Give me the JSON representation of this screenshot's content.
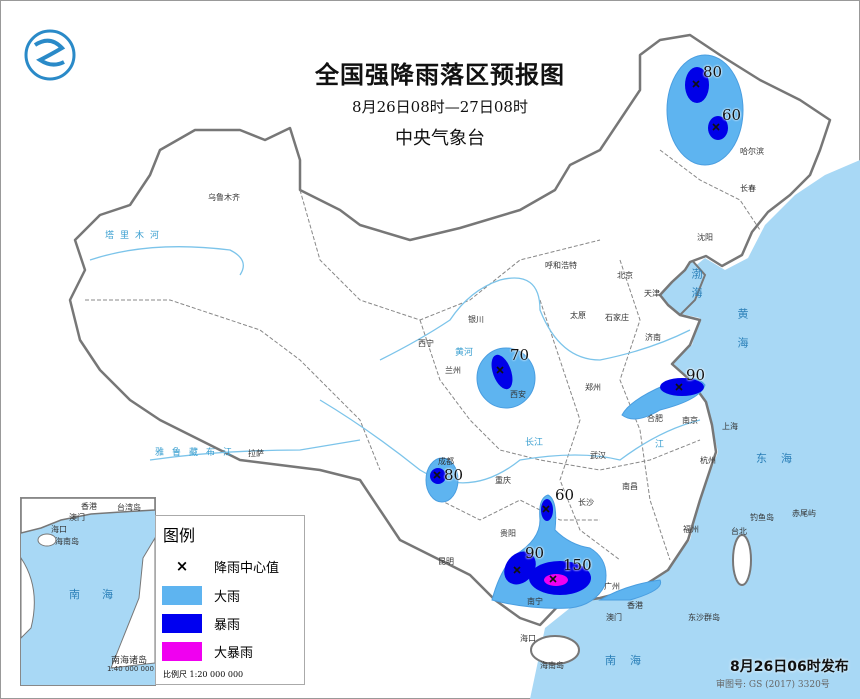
{
  "header": {
    "title": "全国强降雨落区预报图",
    "period": "8月26日08时—27日08时",
    "issuer": "中央气象台",
    "logo": "cma-logo"
  },
  "legend": {
    "heading": "图例",
    "items": [
      {
        "label": "降雨中心值",
        "symbol": "×"
      },
      {
        "label": "大雨",
        "color": "#5eb4f0"
      },
      {
        "label": "暴雨",
        "color": "#0000f0"
      },
      {
        "label": "大暴雨",
        "color": "#f000f0"
      }
    ],
    "scale": "比例尺   1:20 000 000"
  },
  "rain_centers": [
    {
      "region": "heilongjiang-north",
      "value": "80"
    },
    {
      "region": "heilongjiang-south",
      "value": "60"
    },
    {
      "region": "shaanxi",
      "value": "70"
    },
    {
      "region": "sichuan",
      "value": "80"
    },
    {
      "region": "jiangsu",
      "value": "90"
    },
    {
      "region": "hunan-guangxi",
      "value": "60"
    },
    {
      "region": "guangxi-west",
      "value": "90"
    },
    {
      "region": "guangxi-east",
      "value": "150"
    }
  ],
  "cities": [
    "乌鲁木齐",
    "哈尔滨",
    "长春",
    "沈阳",
    "呼和浩特",
    "北京",
    "天津",
    "石家庄",
    "太原",
    "济南",
    "银川",
    "西宁",
    "兰州",
    "西安",
    "郑州",
    "合肥",
    "南京",
    "上海",
    "杭州",
    "武汉",
    "成都",
    "重庆",
    "拉萨",
    "长沙",
    "南昌",
    "福州",
    "台北",
    "贵阳",
    "昆明",
    "南宁",
    "广州",
    "香港",
    "澳门",
    "海口"
  ],
  "seas": [
    "渤海",
    "黄海",
    "东海",
    "南海"
  ],
  "islands": [
    "钓鱼岛",
    "赤尾屿",
    "东沙群岛",
    "海南岛"
  ],
  "rivers": [
    "塔里木河",
    "雅鲁藏布江",
    "黄河",
    "长江",
    "江"
  ],
  "inset": {
    "labels": [
      "香港",
      "澳门",
      "台湾岛",
      "海口",
      "海南岛",
      "南海"
    ],
    "caption": "南海诸岛",
    "scale": "1:40 000 000"
  },
  "footer": {
    "issued": "8月26日06时发布",
    "approval": "审图号: GS (2017) 3320号"
  },
  "colors": {
    "sea": "#a8d8f5",
    "heavy_rain": "#5eb4f0",
    "rainstorm": "#0000f0",
    "heavy_rainstorm": "#f000f0"
  }
}
